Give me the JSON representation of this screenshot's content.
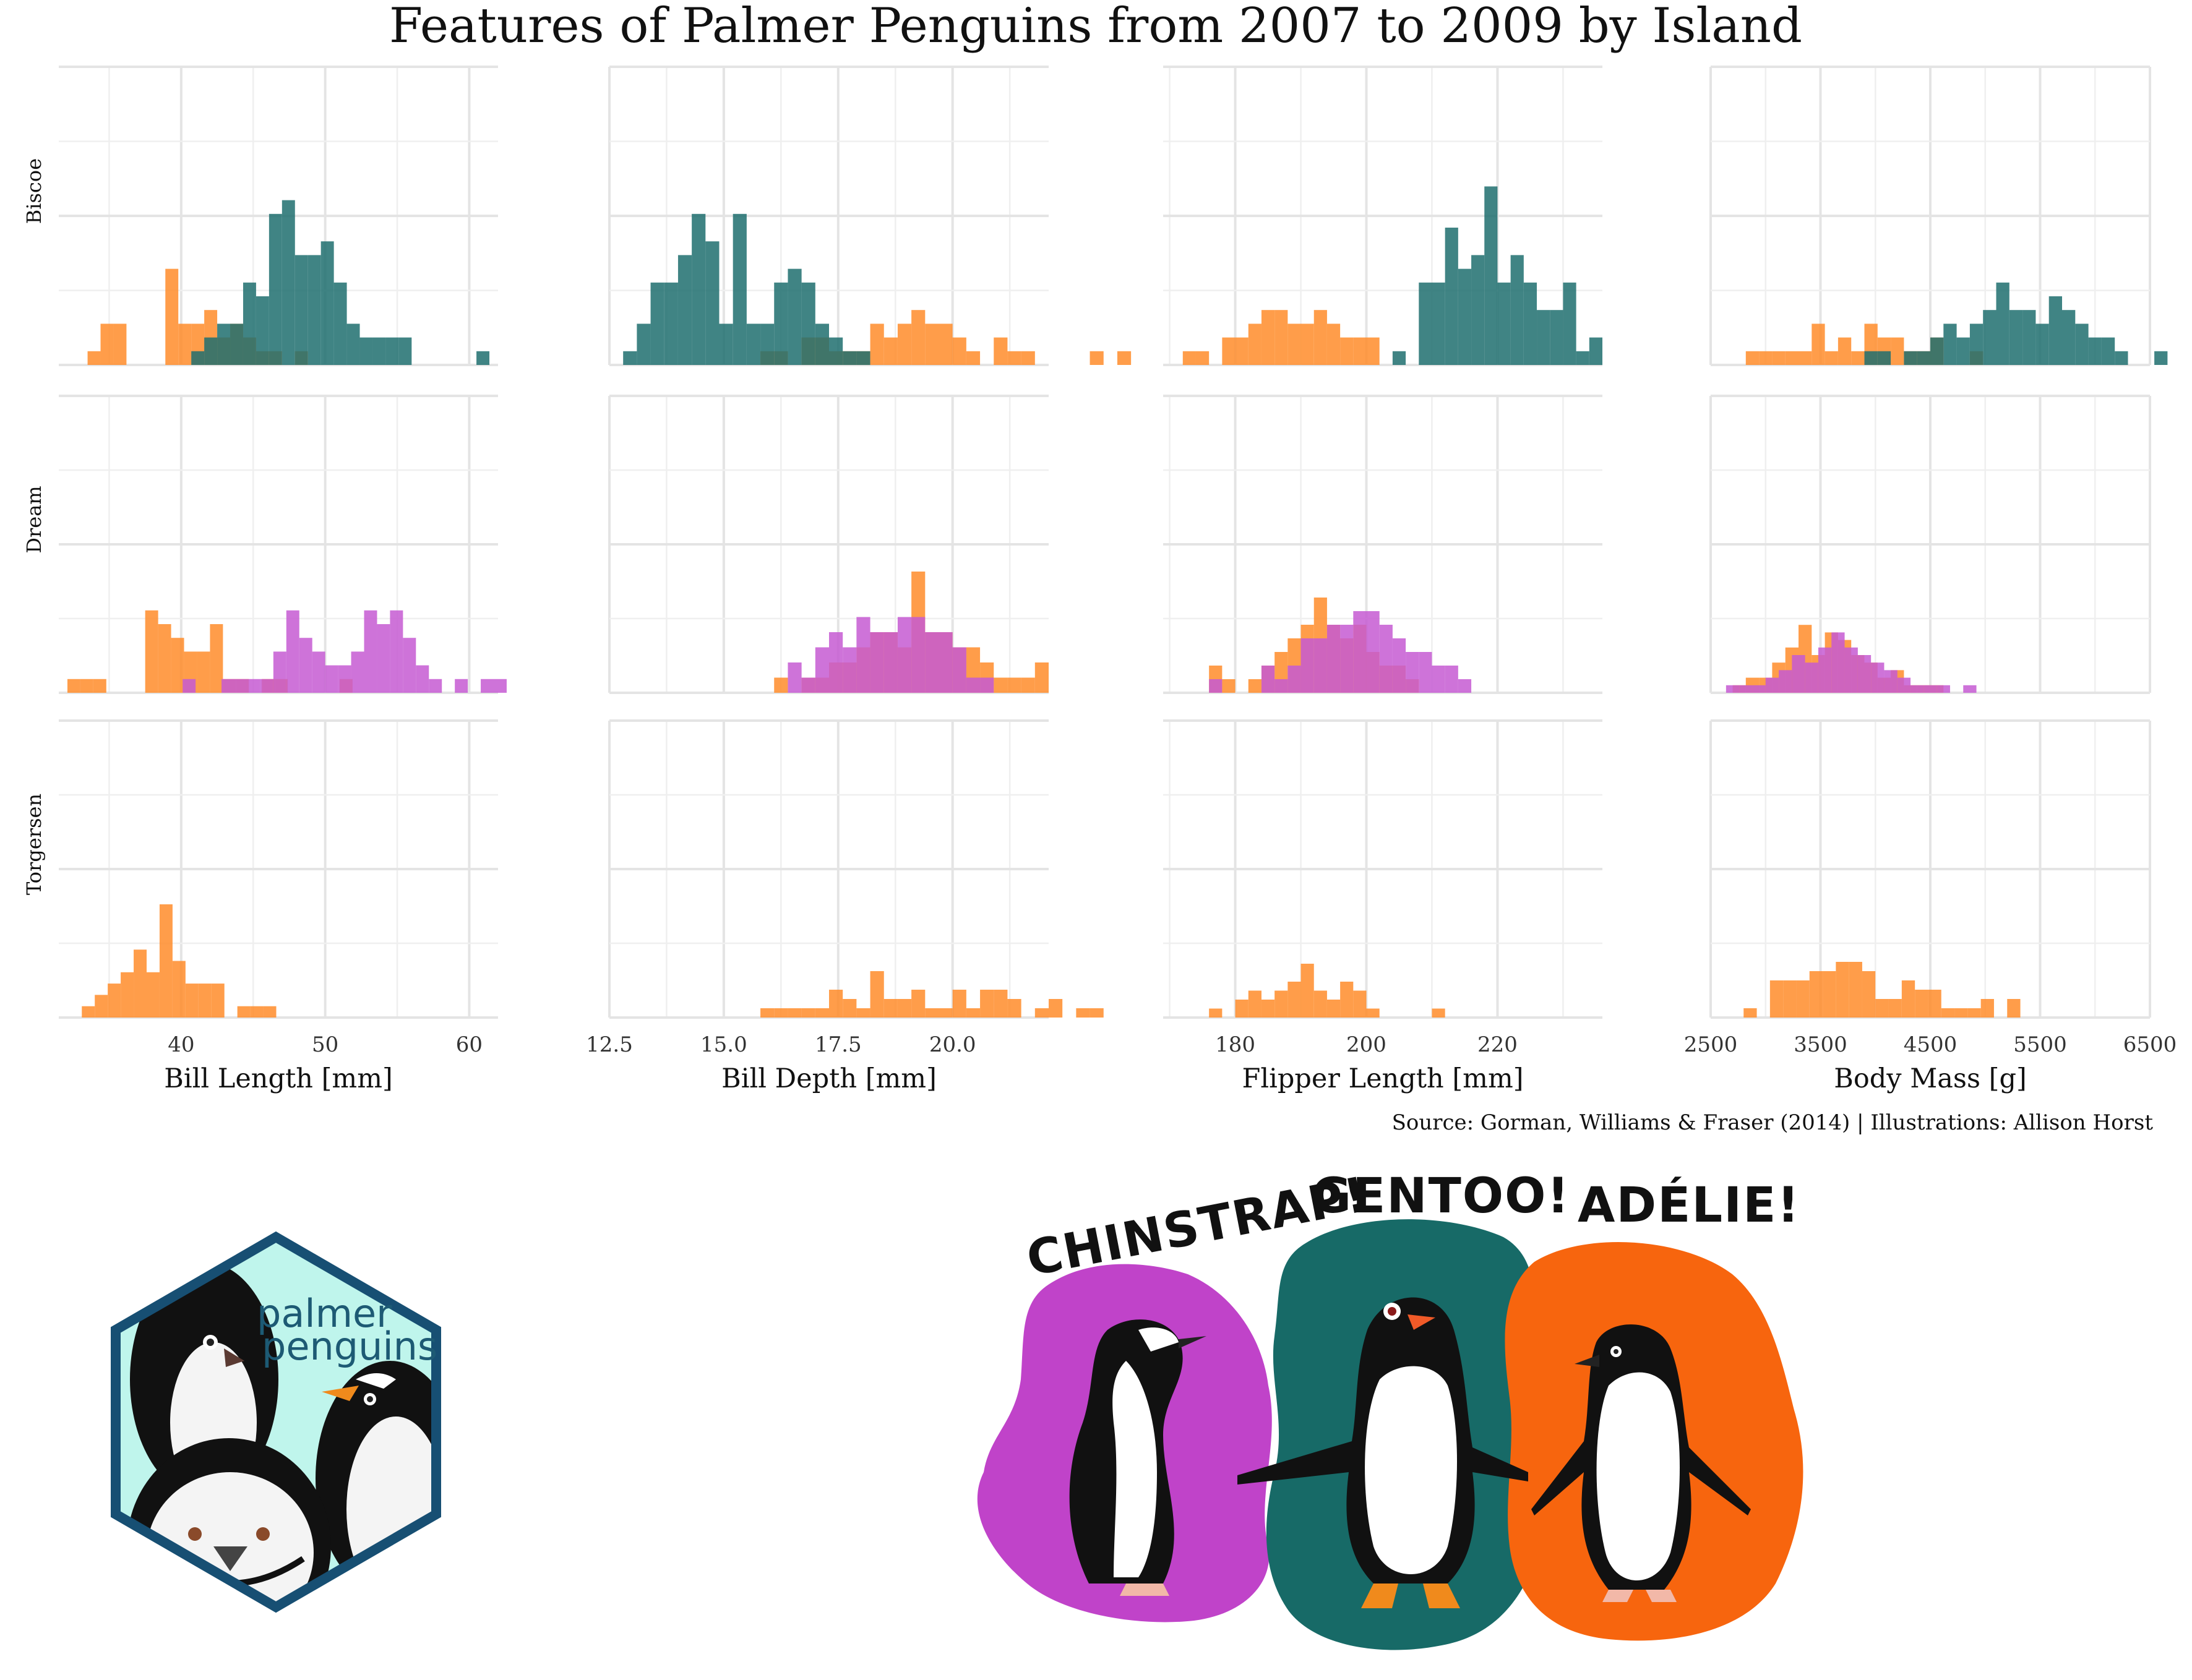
{
  "chart_data": {
    "type": "histogram",
    "title": "Features of Palmer Penguins from 2007 to 2009 by Island",
    "caption": "Source: Gorman, Williams & Fraser (2014) | Illustrations: Allison Horst",
    "colors": {
      "Adelie": "#FF8C2A",
      "Gentoo": "#1E6E6E",
      "Chinstrap": "#C55BD2"
    },
    "islands": [
      "Biscoe",
      "Dream",
      "Torgersen"
    ],
    "facets": [
      {
        "name": "bill_length",
        "xlabel": "Bill Length [mm]",
        "xlim": [
          31.5,
          62
        ],
        "xticks": [
          40,
          50,
          60
        ],
        "xtick_labels": [
          "40",
          "50",
          "60"
        ],
        "binwidth": 0.9
      },
      {
        "name": "bill_depth",
        "xlabel": "Bill Depth [mm]",
        "xlim": [
          12.5,
          22.1
        ],
        "xticks": [
          12.5,
          15.0,
          17.5,
          20.0
        ],
        "xtick_labels": [
          "12.5",
          "15.0",
          "17.5",
          "20.0"
        ],
        "binwidth": 0.3
      },
      {
        "name": "flipper_length",
        "xlabel": "Flipper Length [mm]",
        "xlim": [
          169,
          236
        ],
        "xticks": [
          180,
          200,
          220
        ],
        "xtick_labels": [
          "180",
          "200",
          "220"
        ],
        "binwidth": 2.0
      },
      {
        "name": "body_mass",
        "xlabel": "Body Mass [g]",
        "xlim": [
          2500,
          6500
        ],
        "xticks": [
          2500,
          3500,
          4500,
          5500,
          6500
        ],
        "xtick_labels": [
          "2500",
          "3500",
          "4500",
          "5500",
          "6500"
        ],
        "binwidth": 120
      }
    ],
    "series": [
      {
        "island": "Biscoe",
        "facet": "bill_length",
        "species": "Adelie",
        "start": 33.5,
        "counts": [
          1,
          3,
          3,
          0,
          0,
          0,
          7,
          3,
          3,
          4,
          2,
          3,
          2,
          1,
          1,
          0,
          1
        ]
      },
      {
        "island": "Biscoe",
        "facet": "bill_length",
        "species": "Gentoo",
        "start": 40.7,
        "counts": [
          1,
          2,
          3,
          3,
          6,
          5,
          11,
          12,
          8,
          8,
          9,
          6,
          3,
          2,
          2,
          2,
          2,
          0,
          0,
          0,
          0,
          0,
          1
        ]
      },
      {
        "island": "Biscoe",
        "facet": "bill_depth",
        "species": "Gentoo",
        "start": 12.8,
        "counts": [
          1,
          3,
          6,
          6,
          8,
          11,
          9,
          3,
          11,
          3,
          3,
          6,
          7,
          6,
          3,
          2,
          1,
          1,
          0,
          0,
          0,
          0,
          0
        ]
      },
      {
        "island": "Biscoe",
        "facet": "bill_depth",
        "species": "Adelie",
        "start": 15.8,
        "counts": [
          1,
          1,
          0,
          2,
          2,
          1,
          1,
          1,
          3,
          2,
          3,
          4,
          3,
          3,
          2,
          1,
          0,
          2,
          1,
          1,
          0,
          0,
          0,
          0,
          1,
          0,
          1
        ]
      },
      {
        "island": "Biscoe",
        "facet": "flipper_length",
        "species": "Adelie",
        "start": 172,
        "counts": [
          1,
          1,
          0,
          2,
          2,
          3,
          4,
          4,
          3,
          3,
          4,
          3,
          2,
          2,
          2
        ]
      },
      {
        "island": "Biscoe",
        "facet": "flipper_length",
        "species": "Gentoo",
        "start": 204,
        "counts": [
          1,
          0,
          6,
          6,
          10,
          7,
          8,
          13,
          6,
          8,
          6,
          4,
          4,
          6,
          1,
          2
        ]
      },
      {
        "island": "Biscoe",
        "facet": "body_mass",
        "species": "Adelie",
        "start": 2820,
        "counts": [
          1,
          1,
          1,
          1,
          1,
          3,
          1,
          2,
          1,
          3,
          2,
          2,
          1,
          1,
          2,
          0,
          0,
          1
        ]
      },
      {
        "island": "Biscoe",
        "facet": "body_mass",
        "species": "Gentoo",
        "start": 3900,
        "counts": [
          1,
          1,
          0,
          1,
          1,
          2,
          3,
          2,
          3,
          4,
          6,
          4,
          4,
          3,
          5,
          4,
          3,
          2,
          2,
          1,
          0,
          0,
          1
        ]
      },
      {
        "island": "Dream",
        "facet": "bill_length",
        "species": "Adelie",
        "start": 32.1,
        "counts": [
          1,
          1,
          1,
          0,
          0,
          0,
          6,
          5,
          4,
          3,
          3,
          5,
          1,
          1,
          0,
          1,
          1,
          0,
          0,
          0,
          0,
          1
        ]
      },
      {
        "island": "Dream",
        "facet": "bill_length",
        "species": "Chinstrap",
        "start": 40.1,
        "counts": [
          1,
          0,
          0,
          1,
          1,
          1,
          1,
          3,
          6,
          4,
          3,
          2,
          2,
          3,
          6,
          5,
          6,
          4,
          2,
          1,
          0,
          1,
          0,
          1,
          1
        ]
      },
      {
        "island": "Dream",
        "facet": "bill_depth",
        "species": "Adelie",
        "start": 16.1,
        "counts": [
          1,
          0,
          1,
          1,
          2,
          2,
          3,
          4,
          4,
          3,
          8,
          4,
          4,
          3,
          3,
          2,
          1,
          1,
          1,
          2
        ]
      },
      {
        "island": "Dream",
        "facet": "bill_depth",
        "species": "Chinstrap",
        "start": 16.4,
        "counts": [
          2,
          1,
          3,
          4,
          3,
          5,
          4,
          4,
          5,
          5,
          4,
          4,
          3,
          1,
          1
        ]
      },
      {
        "island": "Dream",
        "facet": "flipper_length",
        "species": "Adelie",
        "start": 176,
        "counts": [
          2,
          1,
          0,
          1,
          2,
          3,
          4,
          5,
          7,
          5,
          4,
          5,
          3,
          2,
          2,
          1
        ]
      },
      {
        "island": "Dream",
        "facet": "flipper_length",
        "species": "Chinstrap",
        "start": 176,
        "counts": [
          1,
          0,
          0,
          0,
          2,
          1,
          2,
          4,
          4,
          5,
          5,
          6,
          6,
          5,
          4,
          3,
          3,
          2,
          2,
          1
        ]
      },
      {
        "island": "Dream",
        "facet": "body_mass",
        "species": "Adelie",
        "start": 2700,
        "counts": [
          1,
          2,
          2,
          4,
          6,
          9,
          5,
          8,
          7,
          5,
          4,
          2,
          3,
          1,
          1,
          1
        ]
      },
      {
        "island": "Dream",
        "facet": "body_mass",
        "species": "Chinstrap",
        "start": 2640,
        "counts": [
          1,
          1,
          1,
          2,
          3,
          5,
          4,
          6,
          8,
          6,
          5,
          4,
          3,
          2,
          1,
          1,
          1,
          0,
          1
        ]
      },
      {
        "island": "Torgersen",
        "facet": "bill_length",
        "species": "Adelie",
        "start": 33.1,
        "counts": [
          1,
          2,
          3,
          4,
          6,
          4,
          10,
          5,
          3,
          3,
          3,
          0,
          1,
          1,
          1
        ]
      },
      {
        "island": "Torgersen",
        "facet": "bill_depth",
        "species": "Adelie",
        "start": 15.8,
        "counts": [
          1,
          1,
          1,
          1,
          1,
          3,
          2,
          1,
          5,
          2,
          2,
          3,
          1,
          1,
          3,
          1,
          3,
          3,
          2,
          0,
          1,
          2,
          0,
          1,
          1
        ]
      },
      {
        "island": "Torgersen",
        "facet": "flipper_length",
        "species": "Adelie",
        "start": 176,
        "counts": [
          1,
          0,
          2,
          3,
          2,
          3,
          4,
          6,
          3,
          2,
          4,
          3,
          1,
          0,
          0,
          0,
          0,
          1
        ]
      },
      {
        "island": "Torgersen",
        "facet": "body_mass",
        "species": "Adelie",
        "start": 2800,
        "counts": [
          1,
          0,
          4,
          4,
          4,
          5,
          5,
          6,
          6,
          5,
          2,
          2,
          4,
          3,
          3,
          1,
          1,
          1,
          2,
          0,
          2
        ]
      }
    ]
  },
  "illustration": {
    "logo_text": [
      "palmer",
      "penguins"
    ],
    "labels": [
      "CHINSTRAP!",
      "GENTOO!",
      "ADÉLIE!"
    ]
  }
}
